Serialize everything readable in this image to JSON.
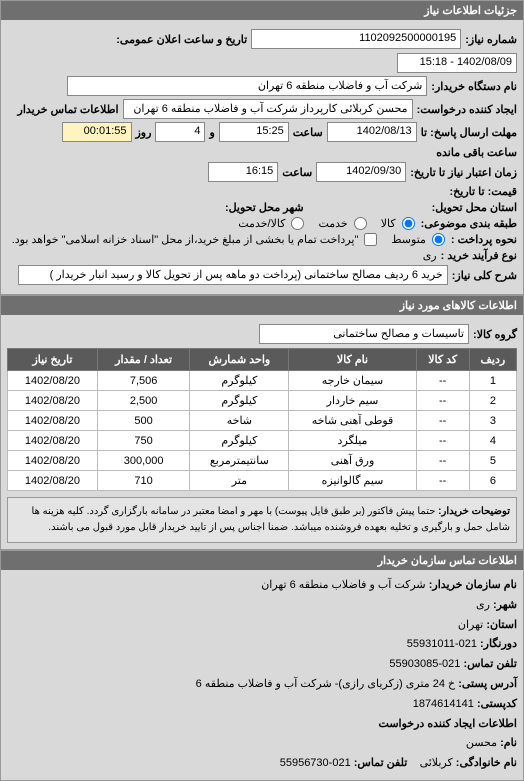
{
  "section1": {
    "title": "جزئیات اطلاعات نیاز",
    "req_no_label": "شماره نیاز:",
    "req_no": "1102092500000195",
    "announce_label": "تاریخ و ساعت اعلان عمومی:",
    "announce": "1402/08/09 - 15:18",
    "buyer_label": "نام دستگاه خریدار:",
    "buyer": "شرکت آب و فاضلاب منطقه 6 تهران",
    "requester_label": "ایجاد کننده درخواست:",
    "requester": "محسن کربلائی کارپرداز شرکت آب و فاضلاب منطقه 6 تهران",
    "info_label": "اطلاعات تماس خریدار",
    "deadline_label": "مهلت ارسال پاسخ: تا",
    "deadline_date": "1402/08/13",
    "time_label": "ساعت",
    "deadline_time": "15:25",
    "and_label": "و",
    "day_label": "روز",
    "days": "4",
    "remain_label": "ساعت باقی مانده",
    "remain": "00:01:55",
    "valid_label": "زمان اعتبار نیاز تا تاریخ:",
    "valid_date": "1402/09/30",
    "valid_time": "16:15",
    "price_label": "قیمت: تا تاریخ:",
    "location_label": "استان محل تحویل:",
    "city_label": "شهر محل تحویل:",
    "pack_label": "طبقه بندی موضوعی:",
    "pack_goods": "کالا",
    "pack_svc": "خدمت",
    "pack_goods_svc": "کالا/خدمت",
    "adv_label": "نحوه پرداخت :",
    "adv_post": "متوسط",
    "adv_note": "\"پرداخت تمام یا بخشی از مبلغ خرید،از محل \"اسناد خزانه اسلامی\" خواهد بود.",
    "process_label": "نوع فرآیند خرید :",
    "process": "ری",
    "desc_label": "شرح کلی نیاز:",
    "desc": "خرید 6 ردیف مصالح ساختمانی (پرداخت دو ماهه پس از تحویل کالا و رسید انبار خریدار )"
  },
  "section2": {
    "title": "اطلاعات کالاهای مورد نیاز",
    "group_label": "گروه کالا:",
    "group": "تاسیسات و مصالح ساختمانی",
    "cols": [
      "ردیف",
      "کد کالا",
      "نام کالا",
      "واحد شمارش",
      "تعداد / مقدار",
      "تاریخ نیاز"
    ],
    "rows": [
      [
        "1",
        "--",
        "سیمان خارجه",
        "کیلوگرم",
        "7,506",
        "1402/08/20"
      ],
      [
        "2",
        "--",
        "سیم خاردار",
        "کیلوگرم",
        "2,500",
        "1402/08/20"
      ],
      [
        "3",
        "--",
        "قوطی آهنی شاخه",
        "شاخه",
        "500",
        "1402/08/20"
      ],
      [
        "4",
        "--",
        "میلگرد",
        "کیلوگرم",
        "750",
        "1402/08/20"
      ],
      [
        "5",
        "--",
        "ورق آهنی",
        "سانتیمترمربع",
        "300,000",
        "1402/08/20"
      ],
      [
        "6",
        "--",
        "سیم گالوانیزه",
        "متر",
        "710",
        "1402/08/20"
      ]
    ],
    "watermark": "پایگاه اطلاع رسانی مناقصات و مزایدات کشور 88349670",
    "note_label": "توضیحات خریدار:",
    "note": "حتما پیش فاکتور (بر طبق فایل پیوست) با مهر و امضا معتبر در سامانه بارگزاری گردد. کلیه هزینه ها شامل حمل و بارگیری و تخلیه بعهده فروشنده میباشد. ضمنا اجناس پس از تایید خریدار قابل مورد قبول می باشند."
  },
  "section3": {
    "title": "اطلاعات تماس سازمان خریدار",
    "org_label": "نام سازمان خریدار:",
    "org": "شرکت آب و فاضلاب منطقه 6 تهران",
    "city_label": "شهر:",
    "city": "ری",
    "province_label": "استان:",
    "province": "تهران",
    "fax_label": "دورنگار:",
    "fax": "021-55931011",
    "phone_label": "تلفن تماس:",
    "phone": "021-55903085",
    "addr_label": "آدرس پستی:",
    "addr": "خ 24 متری (زکریای رازی)- شرکت آب و فاضلاب منطقه 6",
    "post_label": "کدپستی:",
    "post": "1874614141",
    "sub_title": "اطلاعات ایجاد کننده درخواست",
    "name_label": "نام:",
    "name": "محسن",
    "family_label": "نام خانوادگی:",
    "family": "کربلائی",
    "tel_label": "تلفن تماس:",
    "tel": "021-55956730"
  }
}
